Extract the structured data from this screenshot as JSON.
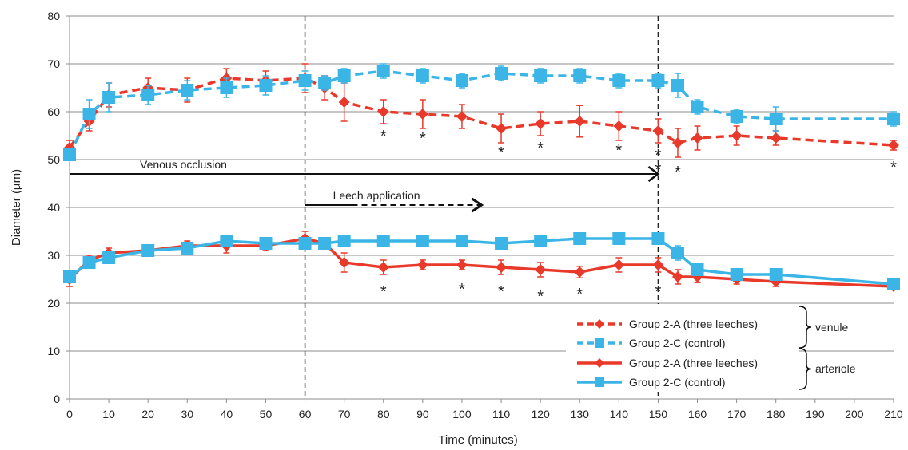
{
  "chart_data": {
    "type": "line",
    "title": "",
    "xlabel": "Time (minutes)",
    "ylabel": "Diameter (µm)",
    "xlim": [
      0,
      210
    ],
    "ylim": [
      0,
      80
    ],
    "x_ticks": [
      0,
      10,
      20,
      30,
      40,
      50,
      60,
      70,
      80,
      90,
      100,
      110,
      120,
      130,
      140,
      150,
      160,
      170,
      180,
      190,
      200,
      210
    ],
    "y_ticks": [
      0,
      10,
      20,
      30,
      40,
      50,
      60,
      70,
      80
    ],
    "grid": "horizontal",
    "legend_position": "bottom-right",
    "series": [
      {
        "name": "Group 2-A (three leeches)",
        "group": "venule",
        "color": "#e8392a",
        "dash": "dashed",
        "marker": "diamond",
        "x": [
          0,
          5,
          10,
          20,
          30,
          40,
          50,
          60,
          65,
          70,
          80,
          90,
          100,
          110,
          120,
          130,
          140,
          150,
          155,
          160,
          170,
          180,
          210
        ],
        "y": [
          52.5,
          58,
          63.5,
          65,
          64.5,
          67,
          66.5,
          67,
          65,
          62,
          60,
          59.5,
          59,
          56.5,
          57.5,
          58,
          57,
          56,
          53.5,
          54.5,
          55,
          54.5,
          53
        ],
        "err": [
          1.5,
          2,
          2.5,
          2,
          2.5,
          2,
          2,
          3,
          2.5,
          4,
          2.5,
          3,
          2.5,
          3,
          2.5,
          3.3,
          3,
          2.5,
          3,
          2.5,
          2,
          1.5,
          1
        ]
      },
      {
        "name": "Group 2-C (control)",
        "group": "venule",
        "color": "#3ab5e6",
        "dash": "dashed",
        "marker": "square",
        "x": [
          0,
          5,
          10,
          20,
          30,
          40,
          50,
          60,
          65,
          70,
          80,
          90,
          100,
          110,
          120,
          130,
          140,
          150,
          155,
          160,
          170,
          180,
          210
        ],
        "y": [
          51,
          59.5,
          63,
          63.5,
          64.5,
          65,
          65.5,
          66.5,
          66,
          67.5,
          68.5,
          67.5,
          66.5,
          68,
          67.5,
          67.5,
          66.5,
          66.5,
          65.5,
          61,
          59,
          58.5,
          58.5
        ],
        "err": [
          1,
          3,
          3,
          2,
          2,
          2,
          2,
          2,
          1.5,
          1.5,
          1.5,
          1.5,
          1.5,
          1.5,
          1.5,
          1.5,
          1.5,
          1.5,
          2.5,
          1.5,
          1.5,
          2.5,
          1.5
        ]
      },
      {
        "name": "Group 2-A (three leeches)",
        "group": "arteriole",
        "color": "#e8392a",
        "dash": "solid",
        "marker": "diamond",
        "x": [
          0,
          5,
          10,
          20,
          30,
          40,
          50,
          60,
          65,
          70,
          80,
          90,
          100,
          110,
          120,
          130,
          140,
          150,
          155,
          160,
          170,
          180,
          210
        ],
        "y": [
          25,
          29,
          30.5,
          31,
          32,
          32,
          32,
          33.5,
          32.5,
          28.5,
          27.5,
          28,
          28,
          27.5,
          27,
          26.5,
          28,
          28,
          25.5,
          25.5,
          25,
          24.5,
          23.5
        ],
        "err": [
          1.5,
          1,
          1,
          1,
          1,
          1.5,
          1,
          1.5,
          1,
          2,
          1.5,
          1,
          1,
          1.5,
          1.5,
          1.2,
          1.5,
          1.5,
          1.5,
          1.2,
          1,
          1,
          0.5
        ]
      },
      {
        "name": "Group 2-C (control)",
        "group": "arteriole",
        "color": "#3ab5e6",
        "dash": "solid",
        "marker": "square",
        "x": [
          0,
          5,
          10,
          20,
          30,
          40,
          50,
          60,
          65,
          70,
          80,
          90,
          100,
          110,
          120,
          130,
          140,
          150,
          155,
          160,
          170,
          180,
          210
        ],
        "y": [
          25.5,
          28.5,
          29.5,
          31,
          31.5,
          33,
          32.5,
          32.5,
          32.5,
          33,
          33,
          33,
          33,
          32.5,
          33,
          33.5,
          33.5,
          33.5,
          30.5,
          27,
          26,
          26,
          24
        ],
        "err": [
          1,
          1,
          1,
          1,
          1,
          1,
          1,
          1,
          1,
          1,
          1,
          1,
          1,
          1,
          1,
          1,
          1,
          1,
          1.5,
          1,
          1,
          1,
          0.5
        ]
      }
    ],
    "vlines_x": [
      60,
      150
    ],
    "arrows": [
      {
        "label": "Venous occlusion",
        "x_start": 0,
        "x_end": 150,
        "y": 47,
        "style": "solid"
      },
      {
        "label": "Leech application",
        "x_start": 60,
        "x_end": 105,
        "y": 40.5,
        "style": "solid-then-dashed",
        "dash_from_x": 72
      }
    ],
    "significance_stars": [
      {
        "label": "*",
        "x": 80,
        "y": 55
      },
      {
        "label": "*",
        "x": 90,
        "y": 54.5
      },
      {
        "label": "*",
        "x": 110,
        "y": 51.5
      },
      {
        "label": "*",
        "x": 120,
        "y": 52.5
      },
      {
        "label": "*",
        "x": 140,
        "y": 52
      },
      {
        "label": "*",
        "x": 150,
        "y": 51
      },
      {
        "label": "*",
        "x": 150,
        "y": 48
      },
      {
        "label": "*",
        "x": 155,
        "y": 47.5
      },
      {
        "label": "*",
        "x": 210,
        "y": 48.5
      },
      {
        "label": "*",
        "x": 80,
        "y": 22.5
      },
      {
        "label": "*",
        "x": 100,
        "y": 23
      },
      {
        "label": "*",
        "x": 110,
        "y": 22.5
      },
      {
        "label": "*",
        "x": 120,
        "y": 21.5
      },
      {
        "label": "*",
        "x": 130,
        "y": 22
      },
      {
        "label": "*",
        "x": 150,
        "y": 22.5
      }
    ],
    "legend": {
      "entries": [
        "Group 2-A (three leeches)",
        "Group 2-C (control)",
        "Group 2-A (three leeches)",
        "Group 2-C (control)"
      ],
      "groups": [
        "venule",
        "arteriole"
      ]
    }
  }
}
